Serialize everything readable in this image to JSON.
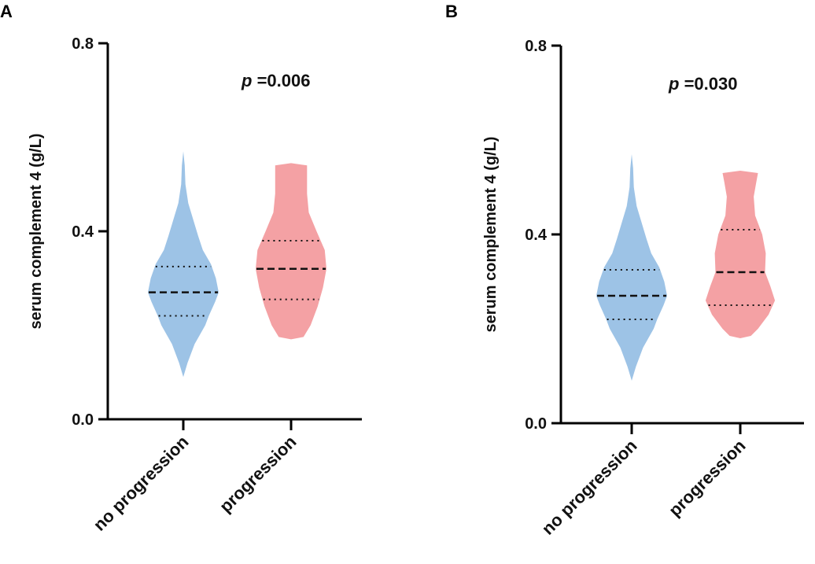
{
  "chart_data": [
    {
      "type": "violin",
      "panel": "A",
      "ylabel": "serum complement 4 (g/L)",
      "ylim": [
        0,
        0.8
      ],
      "yticks": [
        0.0,
        0.4,
        0.8
      ],
      "ytick_labels": [
        "0.0",
        "0.4",
        "0.8"
      ],
      "categories": [
        "no progression",
        "progression"
      ],
      "colors": [
        "#9dc3e6",
        "#f4a1a4"
      ],
      "annotation_prefix": "p",
      "annotation_value": "=0.006",
      "series": [
        {
          "name": "no progression",
          "median": 0.27,
          "q1": 0.22,
          "q3": 0.325,
          "profile": [
            [
              0.09,
              0.0
            ],
            [
              0.12,
              0.12
            ],
            [
              0.16,
              0.32
            ],
            [
              0.2,
              0.62
            ],
            [
              0.22,
              0.72
            ],
            [
              0.25,
              0.9
            ],
            [
              0.27,
              1.0
            ],
            [
              0.3,
              0.92
            ],
            [
              0.33,
              0.78
            ],
            [
              0.36,
              0.55
            ],
            [
              0.39,
              0.42
            ],
            [
              0.42,
              0.3
            ],
            [
              0.46,
              0.14
            ],
            [
              0.5,
              0.06
            ],
            [
              0.54,
              0.04
            ],
            [
              0.57,
              0.0
            ]
          ]
        },
        {
          "name": "progression",
          "median": 0.32,
          "q1": 0.255,
          "q3": 0.38,
          "profile": [
            [
              0.17,
              0.0
            ],
            [
              0.175,
              0.35
            ],
            [
              0.2,
              0.55
            ],
            [
              0.24,
              0.75
            ],
            [
              0.28,
              0.9
            ],
            [
              0.32,
              1.0
            ],
            [
              0.36,
              0.95
            ],
            [
              0.4,
              0.72
            ],
            [
              0.44,
              0.5
            ],
            [
              0.48,
              0.45
            ],
            [
              0.51,
              0.45
            ],
            [
              0.54,
              0.45
            ],
            [
              0.545,
              0.0
            ]
          ]
        }
      ]
    },
    {
      "type": "violin",
      "panel": "B",
      "ylabel": "serum complement 4 (g/L)",
      "ylim": [
        0,
        0.8
      ],
      "yticks": [
        0.0,
        0.4,
        0.8
      ],
      "ytick_labels": [
        "0.0",
        "0.4",
        "0.8"
      ],
      "categories": [
        "no progression",
        "progression"
      ],
      "colors": [
        "#9dc3e6",
        "#f4a1a4"
      ],
      "annotation_prefix": "p",
      "annotation_value": "=0.030",
      "series": [
        {
          "name": "no progression",
          "median": 0.27,
          "q1": 0.22,
          "q3": 0.325,
          "profile": [
            [
              0.09,
              0.0
            ],
            [
              0.12,
              0.12
            ],
            [
              0.16,
              0.32
            ],
            [
              0.2,
              0.62
            ],
            [
              0.22,
              0.72
            ],
            [
              0.25,
              0.9
            ],
            [
              0.27,
              1.0
            ],
            [
              0.3,
              0.92
            ],
            [
              0.33,
              0.78
            ],
            [
              0.36,
              0.55
            ],
            [
              0.39,
              0.42
            ],
            [
              0.42,
              0.3
            ],
            [
              0.46,
              0.14
            ],
            [
              0.5,
              0.06
            ],
            [
              0.54,
              0.04
            ],
            [
              0.57,
              0.0
            ]
          ]
        },
        {
          "name": "progression",
          "median": 0.32,
          "q1": 0.25,
          "q3": 0.41,
          "profile": [
            [
              0.18,
              0.0
            ],
            [
              0.185,
              0.3
            ],
            [
              0.2,
              0.5
            ],
            [
              0.23,
              0.8
            ],
            [
              0.26,
              0.98
            ],
            [
              0.29,
              0.85
            ],
            [
              0.32,
              0.7
            ],
            [
              0.36,
              0.72
            ],
            [
              0.4,
              0.62
            ],
            [
              0.44,
              0.42
            ],
            [
              0.48,
              0.38
            ],
            [
              0.51,
              0.45
            ],
            [
              0.53,
              0.5
            ],
            [
              0.535,
              0.0
            ]
          ]
        }
      ]
    }
  ]
}
